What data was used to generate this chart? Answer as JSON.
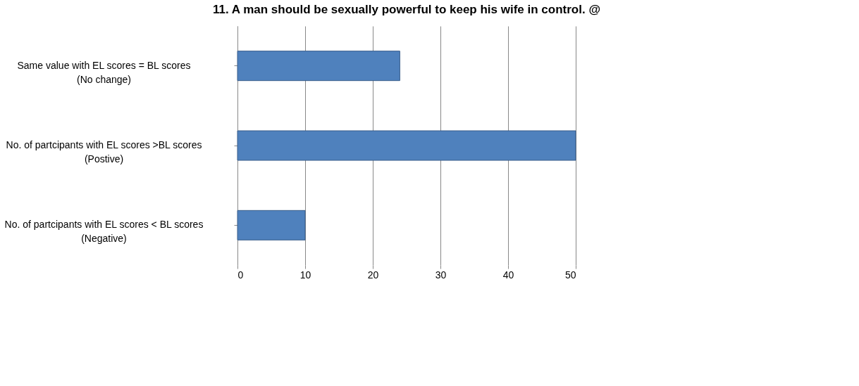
{
  "chart_data": {
    "type": "bar",
    "orientation": "horizontal",
    "title": "11. A man should be sexually powerful to keep his wife in control. @",
    "categories": [
      "Same value with EL scores = BL scores (No change)",
      "No. of partcipants with EL scores >BL scores (Postive)",
      "No. of partcipants with EL scores < BL scores (Negative)"
    ],
    "values": [
      24,
      50,
      10
    ],
    "color": "#4f81bd",
    "xlim": [
      0,
      50
    ],
    "xticks": [
      0,
      10,
      20,
      30,
      40,
      50
    ],
    "grid": "x"
  }
}
